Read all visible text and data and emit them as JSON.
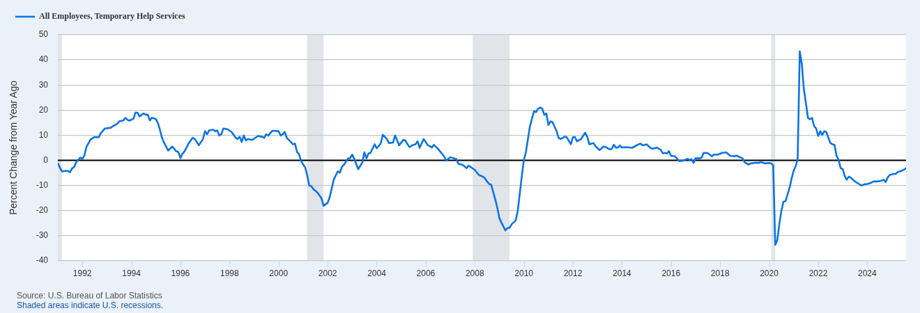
{
  "chart_data": {
    "type": "line",
    "ylabel": "Percent Change from Year Ago",
    "x": [
      "1991-01",
      "1991-03",
      "1991-04",
      "1991-06",
      "1991-07",
      "1991-08",
      "1991-09",
      "1991-10",
      "1991-12",
      "1992-01",
      "1992-02",
      "1992-03",
      "1992-05",
      "1992-07",
      "1992-09",
      "1992-10",
      "1992-12",
      "1993-03",
      "1993-04",
      "1993-06",
      "1993-07",
      "1993-09",
      "1993-10",
      "1993-11",
      "1993-12",
      "1994-02",
      "1994-03",
      "1994-04",
      "1994-05",
      "1994-07",
      "1994-08",
      "1994-09",
      "1994-10",
      "1994-11",
      "1995-01",
      "1995-02",
      "1995-03",
      "1995-04",
      "1995-05",
      "1995-07",
      "1995-09",
      "1995-11",
      "1995-12",
      "1996-01",
      "1996-02",
      "1996-03",
      "1996-05",
      "1996-07",
      "1996-08",
      "1996-10",
      "1996-12",
      "1997-01",
      "1997-02",
      "1997-03",
      "1997-05",
      "1997-06",
      "1997-07",
      "1997-08",
      "1997-09",
      "1997-10",
      "1997-12",
      "1998-02",
      "1998-04",
      "1998-05",
      "1998-06",
      "1998-07",
      "1998-08",
      "1998-09",
      "1998-10",
      "1998-12",
      "1999-03",
      "1999-05",
      "1999-06",
      "1999-07",
      "1999-08",
      "1999-10",
      "2000-01",
      "2000-02",
      "2000-03",
      "2000-04",
      "2000-05",
      "2000-07",
      "2000-08",
      "2000-09",
      "2000-10",
      "2000-11",
      "2000-12",
      "2001-02",
      "2001-03",
      "2001-04",
      "2001-05",
      "2001-06",
      "2001-08",
      "2001-10",
      "2001-11",
      "2002-01",
      "2002-02",
      "2002-04",
      "2002-05",
      "2002-06",
      "2002-07",
      "2002-08",
      "2002-09",
      "2002-11",
      "2002-12",
      "2003-01",
      "2003-02",
      "2003-04",
      "2003-06",
      "2003-07",
      "2003-08",
      "2003-09",
      "2003-10",
      "2003-12",
      "2004-01",
      "2004-03",
      "2004-04",
      "2004-06",
      "2004-07",
      "2004-09",
      "2004-10",
      "2004-12",
      "2005-02",
      "2005-03",
      "2005-05",
      "2005-07",
      "2005-08",
      "2005-09",
      "2005-10",
      "2005-12",
      "2006-02",
      "2006-03",
      "2006-04",
      "2006-05",
      "2006-07",
      "2006-08",
      "2006-10",
      "2006-11",
      "2007-01",
      "2007-04",
      "2007-05",
      "2007-07",
      "2007-09",
      "2007-10",
      "2008-01",
      "2008-03",
      "2008-05",
      "2008-06",
      "2008-07",
      "2008-08",
      "2008-09",
      "2008-11",
      "2008-12",
      "2009-01",
      "2009-02",
      "2009-04",
      "2009-05",
      "2009-06",
      "2009-07",
      "2009-09",
      "2009-10",
      "2009-11",
      "2009-12",
      "2010-01",
      "2010-02",
      "2010-04",
      "2010-06",
      "2010-07",
      "2010-08",
      "2010-09",
      "2010-10",
      "2010-11",
      "2010-12",
      "2011-01",
      "2011-02",
      "2011-03",
      "2011-05",
      "2011-06",
      "2011-07",
      "2011-09",
      "2011-10",
      "2011-12",
      "2012-01",
      "2012-02",
      "2012-03",
      "2012-05",
      "2012-07",
      "2012-08",
      "2012-09",
      "2012-11",
      "2012-12",
      "2013-02",
      "2013-04",
      "2013-05",
      "2013-07",
      "2013-08",
      "2013-09",
      "2013-10",
      "2013-11",
      "2013-12",
      "2014-01",
      "2014-03",
      "2014-06",
      "2014-08",
      "2014-10",
      "2014-11",
      "2015-01",
      "2015-03",
      "2015-04",
      "2015-06",
      "2015-08",
      "2015-09",
      "2015-10",
      "2015-11",
      "2015-12",
      "2016-01",
      "2016-03",
      "2016-05",
      "2016-07",
      "2016-09",
      "2016-10",
      "2016-11",
      "2016-12",
      "2017-01",
      "2017-03",
      "2017-04",
      "2017-05",
      "2017-07",
      "2017-09",
      "2017-10",
      "2017-12",
      "2018-02",
      "2018-04",
      "2018-06",
      "2018-08",
      "2018-09",
      "2018-12",
      "2019-01",
      "2019-03",
      "2019-04",
      "2019-06",
      "2019-08",
      "2019-09",
      "2019-11",
      "2020-01",
      "2020-02",
      "2020-03",
      "2020-04",
      "2020-05",
      "2020-06",
      "2020-07",
      "2020-08",
      "2020-09",
      "2020-11",
      "2020-12",
      "2021-01",
      "2021-02",
      "2021-03",
      "2021-04",
      "2021-05",
      "2021-06",
      "2021-07",
      "2021-08",
      "2021-09",
      "2021-10",
      "2021-11",
      "2021-12",
      "2022-01",
      "2022-02",
      "2022-03",
      "2022-04",
      "2022-05",
      "2022-06",
      "2022-07",
      "2022-08",
      "2022-09",
      "2022-10",
      "2022-11",
      "2022-12",
      "2023-01",
      "2023-02",
      "2023-03",
      "2023-04",
      "2023-05",
      "2023-07",
      "2023-09",
      "2023-10",
      "2023-12",
      "2024-01",
      "2024-03",
      "2024-04",
      "2024-06",
      "2024-08",
      "2024-09",
      "2024-10",
      "2024-11",
      "2024-12",
      "2025-01",
      "2025-02",
      "2025-03",
      "2025-04",
      "2025-05",
      "2025-07",
      "2025-08"
    ],
    "series": [
      {
        "name": "All Employees, Temporary Help Services",
        "color": "#0b74e5",
        "values": [
          -1.2,
          -4.4,
          -4.2,
          -4.2,
          -4.7,
          -3.2,
          -2.6,
          -0.7,
          1.1,
          0.6,
          2.0,
          5.3,
          8.3,
          9.3,
          9.2,
          10.8,
          12.7,
          13.0,
          13.6,
          14.5,
          15.5,
          15.9,
          16.9,
          16.2,
          15.8,
          16.6,
          19.0,
          19.0,
          17.5,
          18.7,
          18.2,
          18.2,
          15.9,
          17.0,
          16.4,
          14.7,
          12.2,
          9.0,
          7.1,
          3.9,
          5.5,
          3.6,
          3.3,
          0.9,
          2.7,
          3.6,
          6.7,
          9.0,
          8.5,
          6.0,
          8.5,
          11.6,
          10.4,
          11.9,
          12.2,
          11.6,
          11.9,
          9.9,
          10.4,
          12.7,
          12.4,
          11.3,
          9.0,
          8.5,
          9.4,
          7.3,
          9.9,
          7.9,
          8.5,
          8.1,
          9.7,
          9.4,
          9.0,
          10.4,
          9.9,
          11.8,
          11.6,
          9.9,
          10.4,
          11.3,
          9.0,
          7.3,
          6.4,
          6.7,
          3.4,
          2.5,
          -0.3,
          -2.9,
          -5.8,
          -10.0,
          -10.2,
          -11.4,
          -12.8,
          -15.1,
          -18.1,
          -16.9,
          -14.6,
          -7.7,
          -6.0,
          -4.4,
          -4.9,
          -2.6,
          -1.7,
          0.8,
          0.9,
          2.3,
          0.6,
          -3.5,
          -0.9,
          3.2,
          0.8,
          2.7,
          3.0,
          6.4,
          4.8,
          6.7,
          10.2,
          8.5,
          6.9,
          7.1,
          9.9,
          6.0,
          8.2,
          7.9,
          5.3,
          6.2,
          6.4,
          7.6,
          5.0,
          8.5,
          6.0,
          5.7,
          5.1,
          6.2,
          4.6,
          3.6,
          1.6,
          -0.1,
          1.3,
          0.5,
          -1.4,
          -1.7,
          -3.1,
          -2.1,
          -3.8,
          -5.8,
          -6.5,
          -7.2,
          -8.4,
          -9.4,
          -9.7,
          -15.6,
          -18.8,
          -23.0,
          -24.8,
          -27.9,
          -26.9,
          -26.9,
          -25.5,
          -23.9,
          -20.2,
          -13.2,
          -6.3,
          0.2,
          3.4,
          13.6,
          19.6,
          19.2,
          20.6,
          21.0,
          20.6,
          18.1,
          18.7,
          14.1,
          15.5,
          15.3,
          11.8,
          9.0,
          8.5,
          9.4,
          9.2,
          6.4,
          9.2,
          9.3,
          7.6,
          8.5,
          11.0,
          9.4,
          6.4,
          6.9,
          5.7,
          4.1,
          5.5,
          5.3,
          4.4,
          4.5,
          6.2,
          5.1,
          5.1,
          5.9,
          5.1,
          5.3,
          5.0,
          5.9,
          6.7,
          6.0,
          6.4,
          5.0,
          4.6,
          5.1,
          4.2,
          2.8,
          3.0,
          2.7,
          3.7,
          1.8,
          1.6,
          -0.3,
          -0.1,
          0.6,
          0.2,
          0.4,
          -1.0,
          0.8,
          0.8,
          1.1,
          3.0,
          2.9,
          1.6,
          2.3,
          2.3,
          3.0,
          3.2,
          1.8,
          1.6,
          1.9,
          0.8,
          -0.7,
          -1.7,
          -1.2,
          -1.0,
          -1.0,
          -0.7,
          -1.2,
          -1.0,
          -1.2,
          -1.9,
          -33.6,
          -31.8,
          -25.3,
          -20.2,
          -16.5,
          -16.2,
          -10.9,
          -7.2,
          -4.0,
          -2.2,
          0.6,
          43.4,
          38.6,
          28.4,
          22.9,
          16.9,
          16.4,
          16.9,
          13.6,
          12.7,
          9.7,
          11.6,
          10.1,
          11.6,
          11.3,
          9.0,
          6.9,
          6.4,
          6.2,
          1.8,
          0.2,
          -3.1,
          -3.5,
          -6.3,
          -7.7,
          -6.5,
          -6.9,
          -8.4,
          -9.4,
          -10.0,
          -9.5,
          -9.4,
          -8.9,
          -8.4,
          -8.4,
          -8.1,
          -7.7,
          -8.6,
          -6.8,
          -5.8,
          -5.6,
          -5.4,
          -5.4,
          -4.6,
          -4.4,
          -3.7,
          -3.1
        ]
      }
    ],
    "xlim": [
      "1991-01",
      "2025-08"
    ],
    "xticks": [
      "1992",
      "1994",
      "1996",
      "1998",
      "2000",
      "2002",
      "2004",
      "2006",
      "2008",
      "2010",
      "2012",
      "2014",
      "2016",
      "2018",
      "2020",
      "2022",
      "2024"
    ],
    "ylim": [
      -40,
      50
    ],
    "yticks": [
      -40,
      -30,
      -20,
      -10,
      0,
      10,
      20,
      30,
      40,
      50
    ],
    "bands": [
      {
        "axis": "x",
        "from": "1991-01",
        "to": "1991-03",
        "color": "#e1e5ea"
      },
      {
        "axis": "x",
        "from": "2001-03",
        "to": "2001-11",
        "color": "#e1e5ea"
      },
      {
        "axis": "x",
        "from": "2007-12",
        "to": "2009-06",
        "color": "#e1e5ea"
      },
      {
        "axis": "x",
        "from": "2020-02",
        "to": "2020-04",
        "color": "#e1e5ea"
      }
    ],
    "ref_lines": [
      {
        "axis": "y",
        "value": 0,
        "color": "#000000"
      }
    ],
    "grid": "y",
    "legend": "top left",
    "annotations": [
      "Source: U.S. Bureau of Labor Statistics",
      "Shaded areas indicate U.S. recessions."
    ]
  }
}
